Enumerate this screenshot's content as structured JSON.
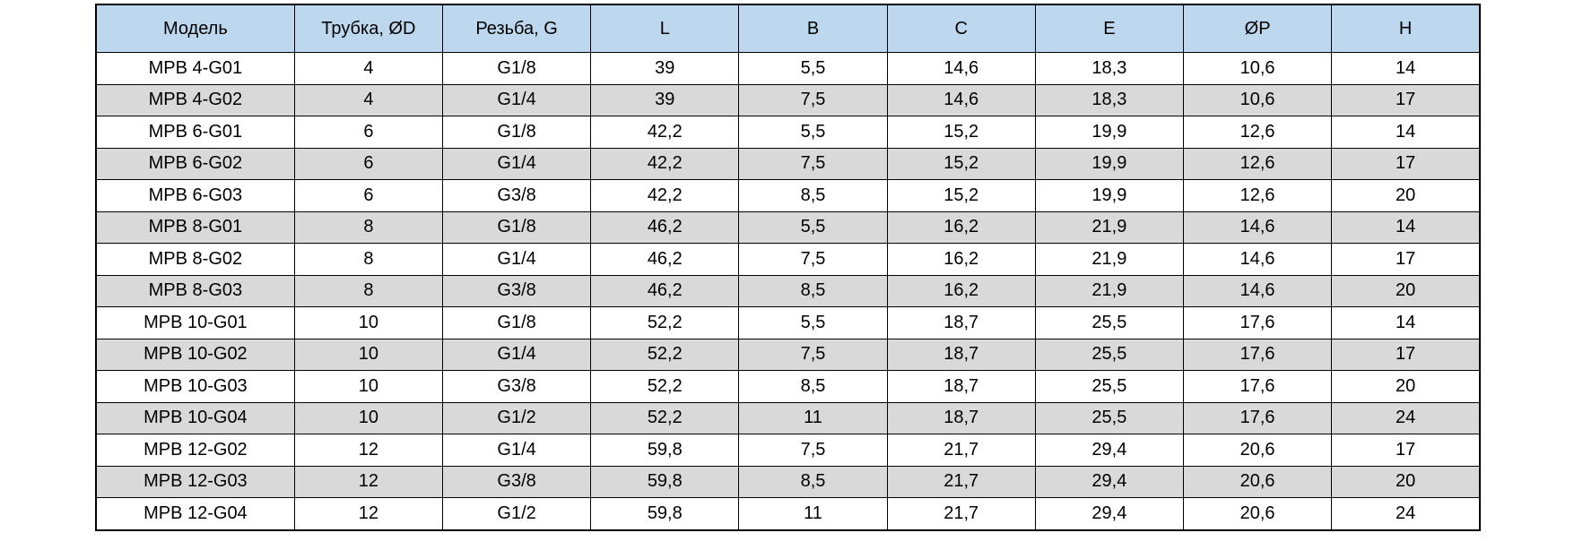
{
  "colors": {
    "header_bg": "#bdd7ee",
    "shaded_row_bg": "#d9d9d9",
    "row_bg": "#ffffff",
    "border": "#000000"
  },
  "table": {
    "columns": [
      "Модель",
      "Трубка, ØD",
      "Резьба, G",
      "L",
      "B",
      "C",
      "E",
      "ØP",
      "H"
    ],
    "rows": [
      [
        "MPB 4-G01",
        "4",
        "G1/8",
        "39",
        "5,5",
        "14,6",
        "18,3",
        "10,6",
        "14"
      ],
      [
        "MPB 4-G02",
        "4",
        "G1/4",
        "39",
        "7,5",
        "14,6",
        "18,3",
        "10,6",
        "17"
      ],
      [
        "MPB 6-G01",
        "6",
        "G1/8",
        "42,2",
        "5,5",
        "15,2",
        "19,9",
        "12,6",
        "14"
      ],
      [
        "MPB 6-G02",
        "6",
        "G1/4",
        "42,2",
        "7,5",
        "15,2",
        "19,9",
        "12,6",
        "17"
      ],
      [
        "MPB 6-G03",
        "6",
        "G3/8",
        "42,2",
        "8,5",
        "15,2",
        "19,9",
        "12,6",
        "20"
      ],
      [
        "MPB 8-G01",
        "8",
        "G1/8",
        "46,2",
        "5,5",
        "16,2",
        "21,9",
        "14,6",
        "14"
      ],
      [
        "MPB 8-G02",
        "8",
        "G1/4",
        "46,2",
        "7,5",
        "16,2",
        "21,9",
        "14,6",
        "17"
      ],
      [
        "MPB 8-G03",
        "8",
        "G3/8",
        "46,2",
        "8,5",
        "16,2",
        "21,9",
        "14,6",
        "20"
      ],
      [
        "MPB 10-G01",
        "10",
        "G1/8",
        "52,2",
        "5,5",
        "18,7",
        "25,5",
        "17,6",
        "14"
      ],
      [
        "MPB 10-G02",
        "10",
        "G1/4",
        "52,2",
        "7,5",
        "18,7",
        "25,5",
        "17,6",
        "17"
      ],
      [
        "MPB 10-G03",
        "10",
        "G3/8",
        "52,2",
        "8,5",
        "18,7",
        "25,5",
        "17,6",
        "20"
      ],
      [
        "MPB 10-G04",
        "10",
        "G1/2",
        "52,2",
        "11",
        "18,7",
        "25,5",
        "17,6",
        "24"
      ],
      [
        "MPB 12-G02",
        "12",
        "G1/4",
        "59,8",
        "7,5",
        "21,7",
        "29,4",
        "20,6",
        "17"
      ],
      [
        "MPB 12-G03",
        "12",
        "G3/8",
        "59,8",
        "8,5",
        "21,7",
        "29,4",
        "20,6",
        "20"
      ],
      [
        "MPB 12-G04",
        "12",
        "G1/2",
        "59,8",
        "11",
        "21,7",
        "29,4",
        "20,6",
        "24"
      ]
    ]
  }
}
